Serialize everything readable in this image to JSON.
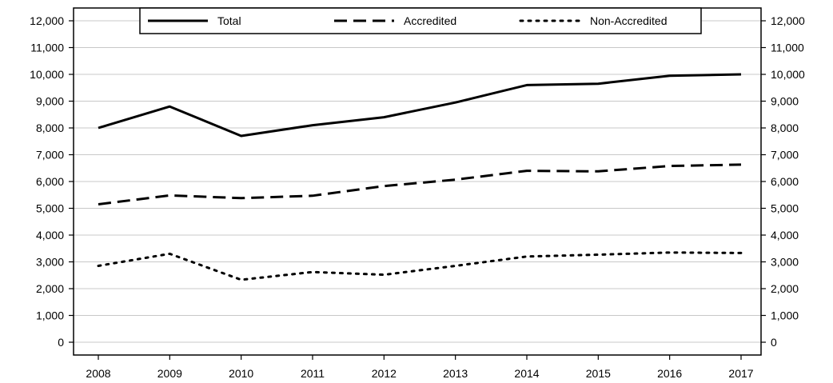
{
  "chart_data": {
    "type": "line",
    "title": "",
    "xlabel": "",
    "ylabel": "",
    "categories": [
      "2008",
      "2009",
      "2010",
      "2011",
      "2012",
      "2013",
      "2014",
      "2015",
      "2016",
      "2017"
    ],
    "ylim": [
      0,
      12000
    ],
    "yticks": [
      0,
      1000,
      2000,
      3000,
      4000,
      5000,
      6000,
      7000,
      8000,
      9000,
      10000,
      11000,
      12000
    ],
    "ytick_labels": [
      "0",
      "1,000",
      "2,000",
      "3,000",
      "4,000",
      "5,000",
      "6,000",
      "7,000",
      "8,000",
      "9,000",
      "10,000",
      "11,000",
      "12,000"
    ],
    "grid": true,
    "legend": "top-center",
    "series": [
      {
        "name": "Total",
        "style": "solid",
        "color": "#000000",
        "values": [
          8000,
          8800,
          7700,
          8100,
          8400,
          8950,
          9600,
          9650,
          9950,
          10000
        ]
      },
      {
        "name": "Accredited",
        "style": "dashed",
        "color": "#000000",
        "values": [
          5150,
          5480,
          5380,
          5470,
          5830,
          6070,
          6400,
          6380,
          6580,
          6630
        ]
      },
      {
        "name": "Non-Accredited",
        "style": "dotted",
        "color": "#000000",
        "values": [
          2850,
          3300,
          2330,
          2620,
          2520,
          2850,
          3200,
          3270,
          3350,
          3330
        ]
      }
    ]
  }
}
